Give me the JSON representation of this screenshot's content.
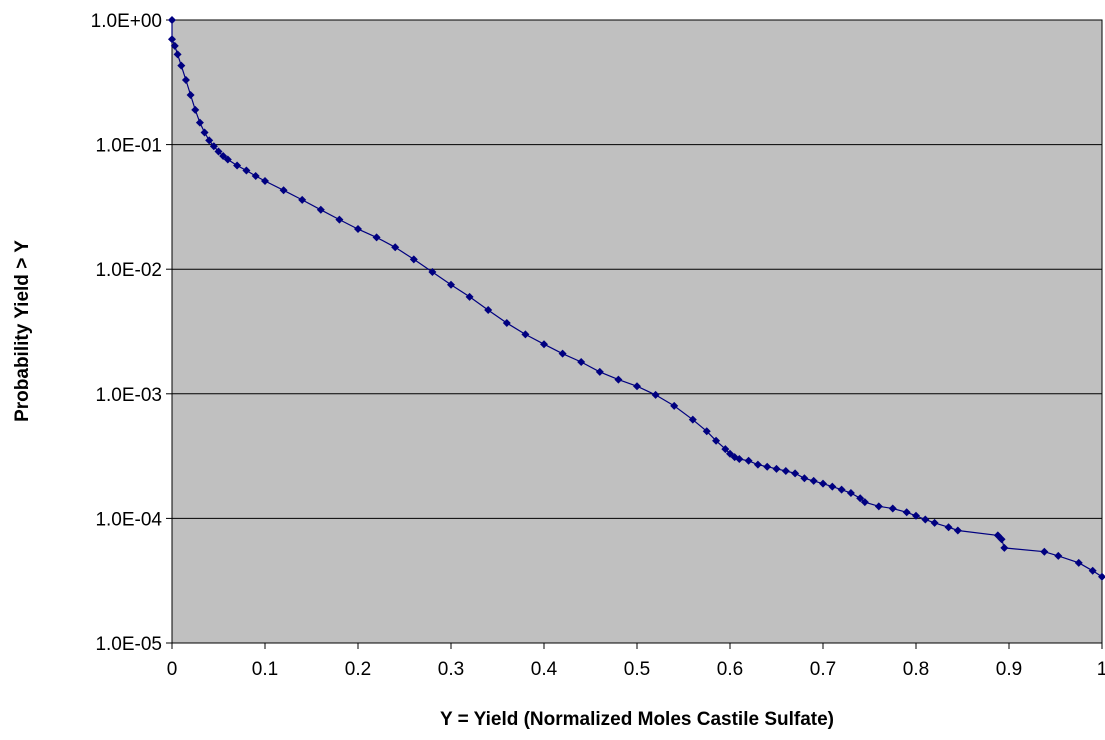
{
  "chart_data": {
    "type": "scatter",
    "title": "",
    "xlabel": "Y = Yield (Normalized Moles Castile Sulfate)",
    "ylabel": "Probability Yield > Y",
    "xlim": [
      0,
      1
    ],
    "ylim": [
      1e-05,
      1
    ],
    "yscale": "log",
    "grid": "horizontal major gridlines",
    "legend": "none",
    "x_ticks": [
      "0",
      "0.1",
      "0.2",
      "0.3",
      "0.4",
      "0.5",
      "0.6",
      "0.7",
      "0.8",
      "0.9",
      "1"
    ],
    "y_ticks": [
      "1.0E+00",
      "1.0E-01",
      "1.0E-02",
      "1.0E-03",
      "1.0E-04",
      "1.0E-05"
    ],
    "colors": {
      "plot_background": "#c0c0c0",
      "series": "#000080",
      "gridline": "#000000"
    },
    "series": [
      {
        "marker": "diamond",
        "x": [
          0.0,
          0.0,
          0.003,
          0.006,
          0.01,
          0.015,
          0.02,
          0.025,
          0.03,
          0.035,
          0.04,
          0.045,
          0.05,
          0.055,
          0.06,
          0.07,
          0.08,
          0.09,
          0.1,
          0.12,
          0.14,
          0.16,
          0.18,
          0.2,
          0.22,
          0.24,
          0.26,
          0.28,
          0.3,
          0.32,
          0.34,
          0.36,
          0.38,
          0.4,
          0.42,
          0.44,
          0.46,
          0.48,
          0.5,
          0.52,
          0.54,
          0.56,
          0.575,
          0.585,
          0.595,
          0.6,
          0.605,
          0.61,
          0.62,
          0.63,
          0.64,
          0.65,
          0.66,
          0.67,
          0.68,
          0.69,
          0.7,
          0.71,
          0.72,
          0.73,
          0.74,
          0.745,
          0.76,
          0.775,
          0.79,
          0.8,
          0.81,
          0.82,
          0.835,
          0.845,
          0.888,
          0.892,
          0.895,
          0.938,
          0.953,
          0.975,
          0.99,
          1.0
        ],
        "y": [
          1.0,
          0.7,
          0.62,
          0.53,
          0.43,
          0.33,
          0.25,
          0.19,
          0.15,
          0.125,
          0.108,
          0.097,
          0.088,
          0.081,
          0.076,
          0.068,
          0.062,
          0.056,
          0.051,
          0.043,
          0.036,
          0.03,
          0.025,
          0.021,
          0.018,
          0.015,
          0.012,
          0.0095,
          0.0075,
          0.006,
          0.0047,
          0.0037,
          0.003,
          0.0025,
          0.0021,
          0.0018,
          0.0015,
          0.0013,
          0.00115,
          0.00098,
          0.0008,
          0.00062,
          0.0005,
          0.00042,
          0.00036,
          0.00033,
          0.00031,
          0.0003,
          0.00029,
          0.00027,
          0.00026,
          0.00025,
          0.00024,
          0.00023,
          0.00021,
          0.0002,
          0.00019,
          0.00018,
          0.00017,
          0.00016,
          0.000145,
          0.000135,
          0.000125,
          0.00012,
          0.000112,
          0.000105,
          9.8e-05,
          9.2e-05,
          8.5e-05,
          8e-05,
          7.3e-05,
          6.8e-05,
          5.8e-05,
          5.4e-05,
          5e-05,
          4.4e-05,
          3.8e-05,
          3.4e-05
        ]
      }
    ]
  }
}
